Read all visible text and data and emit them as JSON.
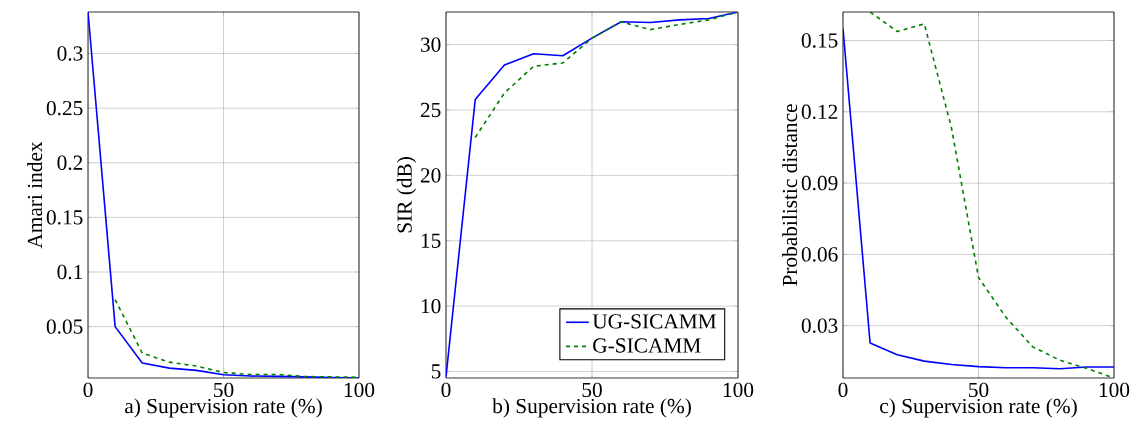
{
  "chart_data": [
    {
      "type": "line",
      "xlabel": "a) Supervision rate (%)",
      "ylabel": "Amari index",
      "x": [
        0,
        10,
        20,
        30,
        40,
        50,
        60,
        70,
        80,
        90,
        100
      ],
      "xlim": [
        0,
        100
      ],
      "ylim": [
        0.003,
        0.338
      ],
      "xticks": [
        0,
        50,
        100
      ],
      "yticks": [
        0.05,
        0.1,
        0.15,
        0.2,
        0.25,
        0.3
      ],
      "grid": true,
      "legend": false,
      "marker": "none",
      "series": [
        {
          "color": "#0000ff",
          "line_style": "solid",
          "values": [
            0.338,
            0.05,
            0.0167,
            0.012,
            0.01,
            0.006,
            0.0048,
            0.0045,
            0.004,
            0.0035,
            0.003
          ]
        },
        {
          "color": "#008000",
          "line_style": "dashed",
          "values": [
            null,
            0.0748,
            0.0258,
            0.0175,
            0.0139,
            0.008,
            0.0062,
            0.0062,
            0.0043,
            0.004,
            0.0037
          ]
        }
      ]
    },
    {
      "type": "line",
      "xlabel": "b) Supervision rate (%)",
      "ylabel": "SIR (dB)",
      "x": [
        0,
        10,
        20,
        30,
        40,
        50,
        60,
        70,
        80,
        90,
        100
      ],
      "xlim": [
        0,
        100
      ],
      "ylim": [
        4.5,
        32.5
      ],
      "xticks": [
        0,
        50,
        100
      ],
      "yticks": [
        5,
        10,
        15,
        20,
        25,
        30
      ],
      "grid": true,
      "legend": "bottom right",
      "marker": "none",
      "series": [
        {
          "name": "UG-SICAMM",
          "color": "#0000ff",
          "line_style": "solid",
          "values": [
            4.6,
            25.8,
            28.45,
            29.3,
            29.15,
            30.5,
            31.75,
            31.7,
            31.9,
            32.0,
            32.5
          ]
        },
        {
          "name": "G-SICAMM",
          "color": "#008000",
          "line_style": "dashed",
          "values": [
            null,
            22.9,
            26.3,
            28.35,
            28.6,
            30.5,
            31.75,
            31.15,
            31.55,
            31.9,
            32.5
          ]
        }
      ]
    },
    {
      "type": "line",
      "xlabel": "c) Supervision rate (%)",
      "ylabel": "Probabilistic distance",
      "x": [
        0,
        10,
        20,
        30,
        40,
        50,
        60,
        70,
        80,
        90,
        100
      ],
      "xlim": [
        0,
        100
      ],
      "ylim": [
        0.008,
        0.162
      ],
      "xticks": [
        0,
        50,
        100
      ],
      "yticks": [
        {
          "value": 0.03,
          "label": "0.03"
        },
        {
          "value": 0.06,
          "label": "0.06"
        },
        {
          "value": 0.09,
          "label": "0.09"
        },
        {
          "value": 0.12,
          "label": "0.12"
        },
        {
          "value": 0.15,
          "label": "0.15"
        }
      ],
      "grid": true,
      "legend": false,
      "marker": "none",
      "series": [
        {
          "color": "#0000ff",
          "line_style": "solid",
          "values": [
            0.155,
            0.0227,
            0.0178,
            0.0151,
            0.0137,
            0.0128,
            0.0123,
            0.0123,
            0.0119,
            0.0126,
            0.0126
          ]
        },
        {
          "color": "#008000",
          "line_style": "dashed",
          "values": [
            null,
            0.162,
            0.1538,
            0.157,
            0.1134,
            0.0503,
            0.0337,
            0.0211,
            0.0155,
            0.012,
            0.008
          ]
        }
      ]
    }
  ]
}
